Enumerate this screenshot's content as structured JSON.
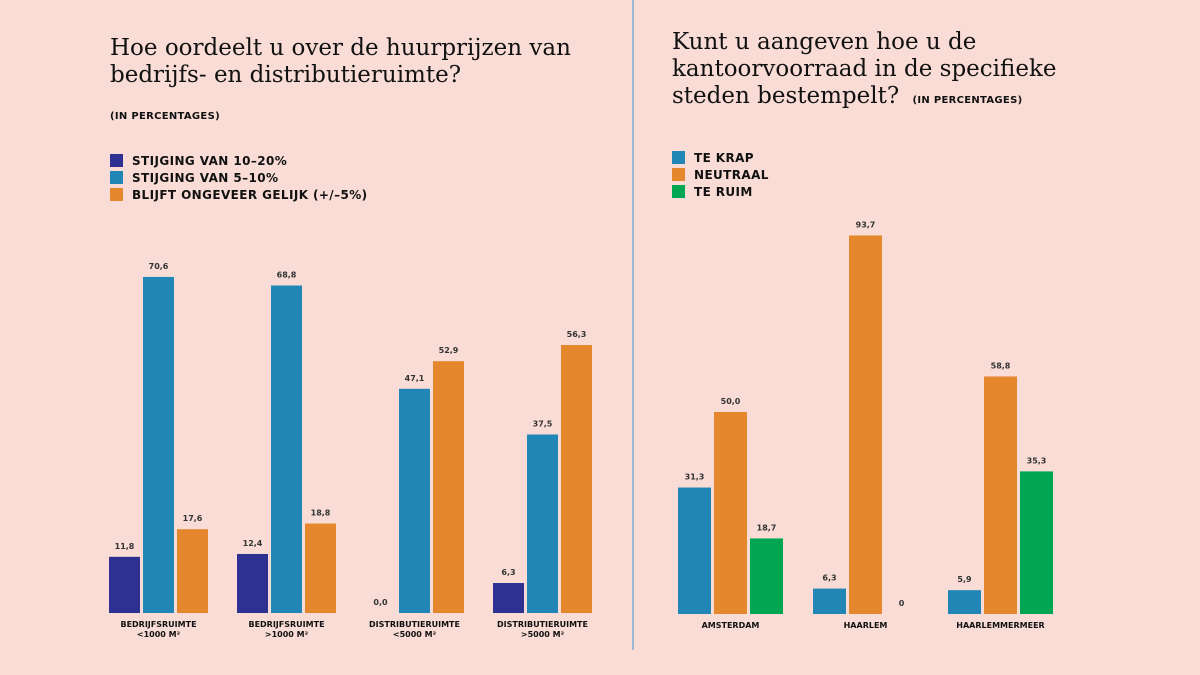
{
  "left": {
    "title_line1": "Hoe oordeelt u over de huurprijzen van",
    "title_line2": "bedrijfs- en distributieruimte?",
    "subtitle": "(IN PERCENTAGES)"
  },
  "right": {
    "title_line1": "Kunt u aangeven hoe u de",
    "title_line2": "kantoorvoorraad in de specifieke",
    "title_line3": "steden bestempelt?",
    "subtitle": "(IN PERCENTAGES)"
  },
  "chart_data": [
    {
      "type": "bar",
      "title": "Hoe oordeelt u over de huurprijzen van bedrijfs- en distributieruimte?",
      "subtitle": "(IN PERCENTAGES)",
      "legend_position": "top-left",
      "grid": false,
      "ylim": [
        0,
        100
      ],
      "categories": [
        [
          "BEDRIJFSRUIMTE",
          "<1000 M²"
        ],
        [
          "BEDRIJFSRUIMTE",
          ">1000 M²"
        ],
        [
          "DISTRIBUTIERUIMTE",
          "<5000 M²"
        ],
        [
          "DISTRIBUTIERUIMTE",
          ">5000 M²"
        ]
      ],
      "series": [
        {
          "name": "STIJGING VAN 10–20%",
          "color": "#2e3192",
          "values": [
            11.8,
            12.4,
            0.0,
            6.3
          ],
          "labels": [
            "11,8",
            "12,4",
            "0,0",
            "6,3"
          ]
        },
        {
          "name": "STIJGING VAN 5–10%",
          "color": "#2185b6",
          "values": [
            70.6,
            68.8,
            47.1,
            37.5
          ],
          "labels": [
            "70,6",
            "68,8",
            "47,1",
            "37,5"
          ]
        },
        {
          "name": "BLIJFT ONGEVEER GELIJK (+/–5%)",
          "color": "#e5882d",
          "values": [
            17.6,
            18.8,
            52.9,
            56.3
          ],
          "labels": [
            "17,6",
            "18,8",
            "52,9",
            "56,3"
          ]
        }
      ]
    },
    {
      "type": "bar",
      "title": "Kunt u aangeven hoe u de kantoorvoorraad in de specifieke steden bestempelt?",
      "subtitle": "(IN PERCENTAGES)",
      "legend_position": "top-left",
      "grid": false,
      "ylim": [
        0,
        100
      ],
      "categories": [
        [
          "AMSTERDAM"
        ],
        [
          "HAARLEM"
        ],
        [
          "HAARLEMMERMEER"
        ]
      ],
      "series": [
        {
          "name": "TE KRAP",
          "color": "#2185b6",
          "values": [
            31.3,
            6.3,
            5.9
          ],
          "labels": [
            "31,3",
            "6,3",
            "5,9"
          ]
        },
        {
          "name": "NEUTRAAL",
          "color": "#e5882d",
          "values": [
            50.0,
            93.7,
            58.8
          ],
          "labels": [
            "50,0",
            "93,7",
            "58,8"
          ]
        },
        {
          "name": "TE RUIM",
          "color": "#00a651",
          "values": [
            18.7,
            0,
            35.3
          ],
          "labels": [
            "18,7",
            "0",
            "35,3"
          ]
        }
      ]
    }
  ]
}
